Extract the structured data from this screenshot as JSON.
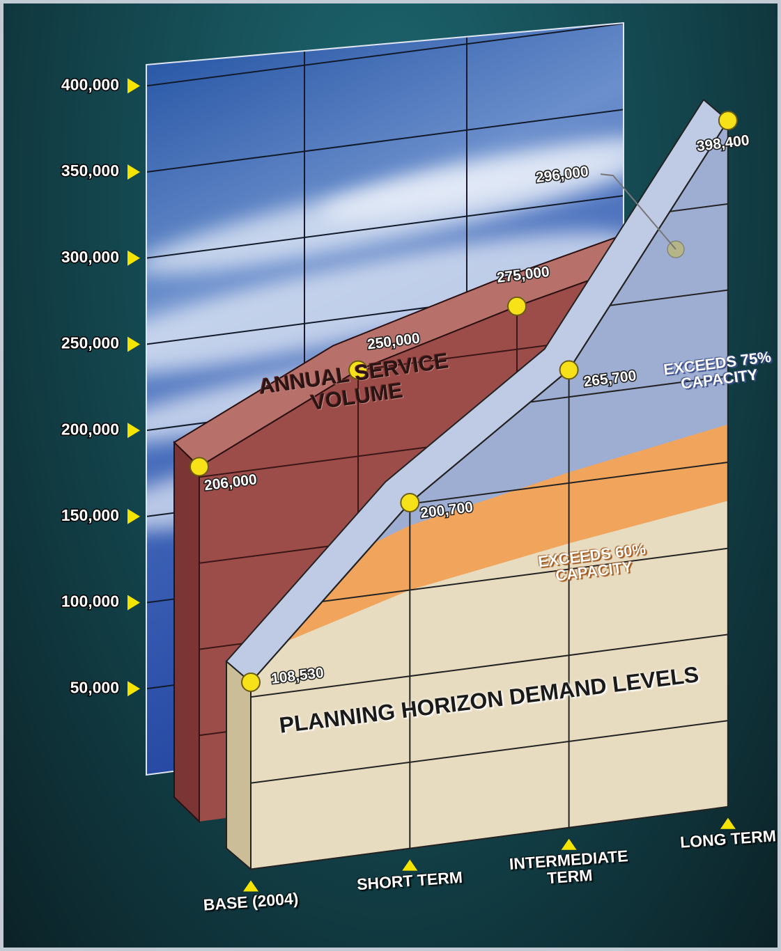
{
  "chart_data": {
    "type": "line",
    "categories": [
      "BASE (2004)",
      "SHORT TERM",
      "INTERMEDIATE TERM",
      "LONG TERM"
    ],
    "series": [
      {
        "name": "ANNUAL SERVICE VOLUME",
        "color": "#9c4c49",
        "values": [
          206000,
          250000,
          275000,
          296000
        ],
        "value_labels": [
          "206,000",
          "250,000",
          "275,000",
          "296,000"
        ]
      },
      {
        "name": "PLANNING HORIZON DEMAND LEVELS",
        "color": "#e8dcc0",
        "values": [
          108530,
          200700,
          265700,
          398400
        ],
        "value_labels": [
          "108,530",
          "200,700",
          "265,700",
          "398,400"
        ]
      }
    ],
    "bands": [
      {
        "label": "EXCEEDS 60% CAPACITY",
        "percent": 60,
        "color": "#f0a45c"
      },
      {
        "label": "EXCEEDS 75% CAPACITY",
        "percent": 75,
        "color": "#9eaed2"
      }
    ],
    "ylim": [
      0,
      400000
    ],
    "yticks": [
      {
        "value": 50000,
        "label": "50,000"
      },
      {
        "value": 100000,
        "label": "100,000"
      },
      {
        "value": 150000,
        "label": "150,000"
      },
      {
        "value": 200000,
        "label": "200,000"
      },
      {
        "value": 250000,
        "label": "250,000"
      },
      {
        "value": 300000,
        "label": "300,000"
      },
      {
        "value": 350000,
        "label": "350,000"
      },
      {
        "value": 400000,
        "label": "400,000"
      }
    ],
    "grid": true
  }
}
